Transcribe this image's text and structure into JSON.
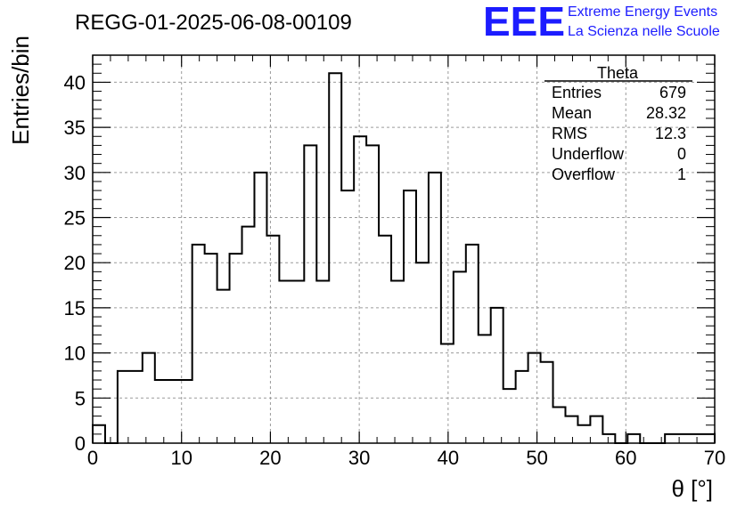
{
  "header": {
    "run_title": "REGG-01-2025-06-08-00109",
    "logo_letters": "EEE",
    "logo_line1": "Extreme Energy Events",
    "logo_line2": "La Scienza nelle Scuole"
  },
  "stats_box": {
    "title": "Theta",
    "rows": [
      {
        "label": "Entries",
        "value": "679"
      },
      {
        "label": "Mean",
        "value": "28.32"
      },
      {
        "label": "RMS",
        "value": "12.3"
      },
      {
        "label": "Underflow",
        "value": "0"
      },
      {
        "label": "Overflow",
        "value": "1"
      }
    ]
  },
  "chart_data": {
    "type": "bar",
    "title": "REGG-01-2025-06-08-00109",
    "xlabel": "θ [°]",
    "ylabel": "Entries/bin",
    "xlim": [
      0,
      70
    ],
    "ylim": [
      0,
      43
    ],
    "bin_width": 1.4,
    "x_ticks": [
      "0",
      "10",
      "20",
      "30",
      "40",
      "50",
      "60",
      "70"
    ],
    "y_ticks": [
      "0",
      "5",
      "10",
      "15",
      "20",
      "25",
      "30",
      "35",
      "40"
    ],
    "grid": true,
    "values": [
      2,
      0,
      8,
      8,
      10,
      7,
      7,
      7,
      22,
      21,
      17,
      21,
      24,
      30,
      23,
      18,
      18,
      33,
      18,
      41,
      28,
      34,
      33,
      23,
      18,
      28,
      20,
      30,
      11,
      19,
      22,
      12,
      15,
      6,
      8,
      10,
      9,
      4,
      3,
      2,
      3,
      1,
      0,
      1,
      0,
      0,
      1,
      1,
      1,
      1
    ]
  },
  "colors": {
    "histogram_line": "#000000",
    "grid": "#9a9a9a",
    "logo": "#1c1cff"
  }
}
